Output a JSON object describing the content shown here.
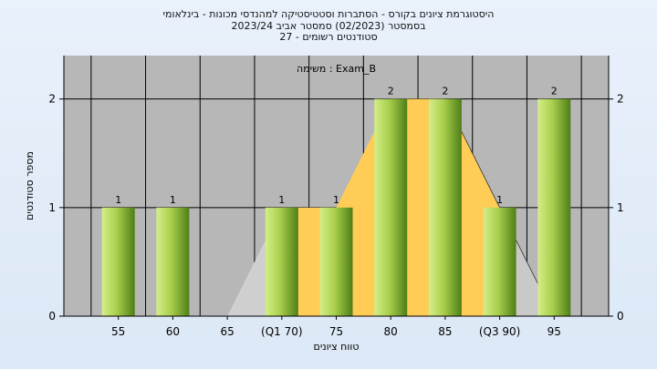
{
  "header": {
    "line1": "היסטוגרמת ציונים בקורס - הסתברות וסטטיסטיקה למהנדסי מכונות - בינלאומי",
    "line2": "בסמסטר  (02/2023)  סמסטר אביב 2023/24",
    "line3": "סטודנטים רשומים - 27"
  },
  "chart_data": {
    "type": "bar",
    "title": "היסטוגרמת ציונים בקורס - הסתברות וסטטיסטיקה למהנדסי מכונות - בינלאומי",
    "subtitle": "בסמסטר  (02/2023)  סמסטר אביב 2023/24 | סטודנטים רשומים - 27",
    "annotation": "משימה : Exam_B",
    "xlabel": "טווח ציונים",
    "ylabel": "מספר סטודנטים",
    "categories": [
      "55",
      "60",
      "65",
      "(Q1 70)",
      "75",
      "80",
      "85",
      "(Q3 90)",
      "95"
    ],
    "values": [
      1,
      1,
      0,
      1,
      1,
      2,
      2,
      1,
      2
    ],
    "data_labels": [
      "1",
      "1",
      "",
      "1",
      "1",
      "2",
      "2",
      "1",
      "2"
    ],
    "area_series": {
      "x": [
        65,
        70,
        75,
        80,
        85,
        90,
        95
      ],
      "y": [
        0,
        1,
        1,
        2,
        2,
        1,
        0
      ]
    },
    "ylim": [
      0,
      2.4
    ],
    "yticks": [
      "0",
      "1",
      "2"
    ],
    "grid": true,
    "colors": {
      "plot_bg": "#b7b7b7",
      "bar_light": "#d6ef8a",
      "bar_dark": "#5c8f1e",
      "area_fill": "#ffcc55",
      "background": "#e4edf8"
    }
  }
}
